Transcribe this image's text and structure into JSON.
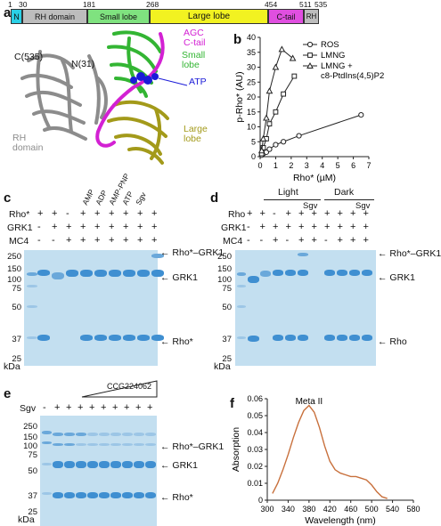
{
  "panel_a": {
    "label": "a",
    "positions": [
      "1",
      "30",
      "181",
      "268",
      "454",
      "511",
      "535"
    ],
    "domains": [
      {
        "name": "N",
        "color": "#2ad0e6"
      },
      {
        "name": "RH domain",
        "color": "#bdbdbd"
      },
      {
        "name": "Small lobe",
        "color": "#7fe27f"
      },
      {
        "name": "Large lobe",
        "color": "#f2f221"
      },
      {
        "name": "C-tail",
        "color": "#e04fe0"
      },
      {
        "name": "RH",
        "color": "#bdbdbd"
      }
    ],
    "structure_labels": {
      "c535": "C(535)",
      "n31": "N(31)",
      "agc": "AGC\nC-tail",
      "small_lobe": "Small\nlobe",
      "atp": "ATP",
      "large_lobe": "Large\nlobe",
      "rh_domain": "RH\ndomain"
    },
    "colors": {
      "agc": "#d321d3",
      "small": "#33b533",
      "atp": "#1b1bd8",
      "large": "#a39a1a",
      "rh": "#8c8c8c"
    }
  },
  "panel_b": {
    "label": "b",
    "chart_data": {
      "type": "scatter",
      "xlabel": "Rho* (µM)",
      "ylabel": "p-Rho* (AU)",
      "xticks": [
        0,
        1,
        2,
        3,
        4,
        5,
        6,
        7
      ],
      "yticks": [
        0,
        5,
        10,
        15,
        20,
        25,
        30,
        35,
        40
      ],
      "xlim": [
        0,
        7
      ],
      "ylim": [
        0,
        40
      ],
      "legend_position": "top-right",
      "series": [
        {
          "name": "ROS",
          "marker": "circle",
          "x": [
            0.1,
            0.2,
            0.4,
            0.6,
            1.0,
            1.5,
            2.5,
            6.5
          ],
          "y": [
            0.5,
            1,
            1.5,
            2.5,
            4,
            5,
            7,
            14
          ]
        },
        {
          "name": "LMNG",
          "marker": "square",
          "x": [
            0.1,
            0.2,
            0.4,
            0.6,
            1.0,
            1.5,
            2.2
          ],
          "y": [
            1,
            3,
            6,
            11,
            15,
            21,
            27
          ]
        },
        {
          "name": "LMNG +\nc8-PtdIns(4,5)P2",
          "marker": "triangle",
          "x": [
            0.1,
            0.2,
            0.4,
            0.6,
            1.0,
            1.4,
            2.1
          ],
          "y": [
            2,
            6,
            13,
            22,
            30,
            36,
            33
          ]
        }
      ]
    }
  },
  "panel_c": {
    "label": "c",
    "row_labels": [
      "Rho*",
      "GRK1",
      "MC4"
    ],
    "rows": [
      [
        "+",
        "+",
        "-",
        "+",
        "+",
        "+",
        "+",
        "+",
        "+"
      ],
      [
        "-",
        "+",
        "+",
        "+",
        "+",
        "+",
        "+",
        "+",
        "+"
      ],
      [
        "-",
        "-",
        "+",
        "+",
        "+",
        "+",
        "+",
        "+",
        "+"
      ]
    ],
    "lane_labels": [
      "AMP",
      "ADP",
      "AMP-PNP",
      "ATP",
      "Sgv"
    ],
    "markers": [
      "250",
      "150",
      "100",
      "75",
      "50",
      "37",
      "25"
    ],
    "kda": "kDa",
    "bands": [
      "Rho*–GRK1",
      "GRK1",
      "Rho*"
    ]
  },
  "panel_d": {
    "label": "d",
    "groups": [
      "Light",
      "Dark"
    ],
    "group_sgv": [
      "Sgv",
      "Sgv"
    ],
    "row_labels": [
      "Rho",
      "GRK1",
      "MC4"
    ],
    "rows": [
      [
        "+",
        "+",
        "-",
        "+",
        "+",
        "+",
        "+",
        "+",
        "+",
        "+"
      ],
      [
        "-",
        "+",
        "+",
        "+",
        "+",
        "+",
        "+",
        "+",
        "+",
        "+"
      ],
      [
        "-",
        "-",
        "+",
        "-",
        "+",
        "+",
        "-",
        "+",
        "+",
        "+"
      ]
    ],
    "markers": [
      "250",
      "150",
      "100",
      "75",
      "50",
      "37",
      "25"
    ],
    "kda": "kDa",
    "bands": [
      "Rho*–GRK1",
      "GRK1",
      "Rho"
    ]
  },
  "panel_e": {
    "label": "e",
    "row_label": "Sgv",
    "signs": [
      "-",
      "+",
      "+",
      "+",
      "+",
      "+",
      "+",
      "+",
      "+",
      "+"
    ],
    "compound": "CCG224062",
    "markers": [
      "250",
      "150",
      "100",
      "75",
      "50",
      "37",
      "25"
    ],
    "kda": "kDa",
    "bands": [
      "Rho*–GRK1",
      "GRK1",
      "Rho*"
    ]
  },
  "panel_f": {
    "label": "f",
    "chart_data": {
      "type": "line",
      "title": "Meta II",
      "xlabel": "Wavelength (nm)",
      "ylabel": "Absorption",
      "xticks": [
        300,
        340,
        380,
        420,
        460,
        500,
        540,
        580
      ],
      "yticks": [
        0,
        0.01,
        0.02,
        0.03,
        0.04,
        0.05,
        0.06
      ],
      "ytick_labels": [
        "0",
        "0.01",
        "0.02",
        "0.03",
        "0.04",
        "0.05",
        "0.06"
      ],
      "xlim": [
        300,
        580
      ],
      "ylim": [
        0,
        0.06
      ],
      "color": "#c8703c",
      "x": [
        310,
        320,
        330,
        340,
        350,
        360,
        370,
        380,
        390,
        400,
        410,
        420,
        430,
        440,
        450,
        460,
        470,
        480,
        490,
        500,
        510,
        520,
        530
      ],
      "y": [
        0.004,
        0.01,
        0.018,
        0.027,
        0.037,
        0.046,
        0.053,
        0.056,
        0.052,
        0.043,
        0.032,
        0.023,
        0.018,
        0.016,
        0.015,
        0.014,
        0.014,
        0.013,
        0.012,
        0.009,
        0.005,
        0.002,
        0.001
      ]
    }
  }
}
